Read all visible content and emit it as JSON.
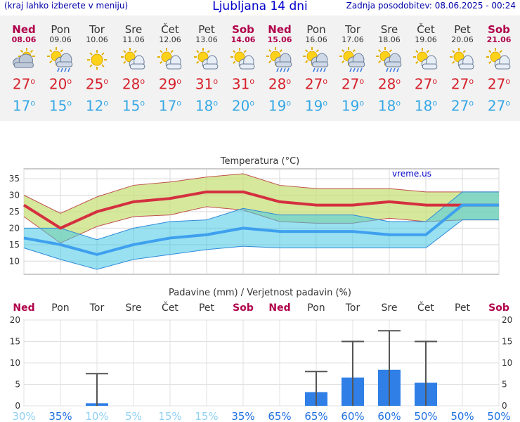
{
  "header": {
    "menu_hint": "(kraj lahko izberete v meniju)",
    "title": "Ljubljana 14 dni",
    "updated": "Zadnja posodobitev: 08.06.2025 - 00:24"
  },
  "days": [
    {
      "name": "Ned",
      "date": "08.06",
      "weekend": true,
      "icon": "cloudy-sun-icon",
      "hi": "27",
      "lo": "17"
    },
    {
      "name": "Pon",
      "date": "09.06",
      "weekend": false,
      "icon": "sun-rain-icon",
      "hi": "20",
      "lo": "15"
    },
    {
      "name": "Tor",
      "date": "10.06",
      "weekend": false,
      "icon": "sun-icon",
      "hi": "25",
      "lo": "12"
    },
    {
      "name": "Sre",
      "date": "11.06",
      "weekend": false,
      "icon": "sun-cloud-icon",
      "hi": "28",
      "lo": "15"
    },
    {
      "name": "Čet",
      "date": "12.06",
      "weekend": false,
      "icon": "sun-cloud-icon",
      "hi": "29",
      "lo": "17"
    },
    {
      "name": "Pet",
      "date": "13.06",
      "weekend": false,
      "icon": "sun-cloud-icon",
      "hi": "31",
      "lo": "18"
    },
    {
      "name": "Sob",
      "date": "14.06",
      "weekend": true,
      "icon": "sun-cloud-icon",
      "hi": "31",
      "lo": "20"
    },
    {
      "name": "Ned",
      "date": "15.06",
      "weekend": true,
      "icon": "sun-rain-icon",
      "hi": "28",
      "lo": "19"
    },
    {
      "name": "Pon",
      "date": "16.06",
      "weekend": false,
      "icon": "sun-rain-icon",
      "hi": "27",
      "lo": "19"
    },
    {
      "name": "Tor",
      "date": "17.06",
      "weekend": false,
      "icon": "sun-rain-icon",
      "hi": "27",
      "lo": "19"
    },
    {
      "name": "Sre",
      "date": "18.06",
      "weekend": false,
      "icon": "sun-rain-icon",
      "hi": "28",
      "lo": "18"
    },
    {
      "name": "Čet",
      "date": "19.06",
      "weekend": false,
      "icon": "sun-cloud-icon",
      "hi": "27",
      "lo": "18"
    },
    {
      "name": "Pet",
      "date": "20.06",
      "weekend": false,
      "icon": "sun-cloud-icon",
      "hi": "27",
      "lo": "27"
    },
    {
      "name": "Sob",
      "date": "21.06",
      "weekend": true,
      "icon": "sun-cloud-icon",
      "hi": "27",
      "lo": "27"
    }
  ],
  "colors": {
    "weekend": "#b0004a",
    "hi": "#d6202a",
    "lo": "#36a8e6",
    "bar": "#2f7fe6",
    "prob_strong": "#1e6fe0",
    "prob_weak": "#8fd0f4"
  },
  "chart_data": [
    {
      "type": "line",
      "title": "Temperatura (°C)",
      "watermark": "vreme.us",
      "categories": [
        "Ned",
        "Pon",
        "Tor",
        "Sre",
        "Čet",
        "Pet",
        "Sob",
        "Ned",
        "Pon",
        "Tor",
        "Sre",
        "Čet",
        "Pet",
        "Sob"
      ],
      "ylim": [
        6,
        38
      ],
      "yticks": [
        10,
        15,
        20,
        25,
        30,
        35
      ],
      "grid": true,
      "series": [
        {
          "values": [
            27,
            20,
            25,
            28,
            29,
            31,
            31,
            28,
            27,
            27,
            28,
            27,
            27,
            27
          ],
          "band_upper": [
            30,
            24.5,
            29.5,
            33,
            34,
            35.5,
            36.5,
            33,
            32,
            32,
            32,
            31,
            31,
            31
          ],
          "band_lower": [
            23.5,
            15.5,
            20.5,
            23.5,
            24,
            26.5,
            25.5,
            22,
            21.5,
            21.5,
            23,
            22,
            22.5,
            22.5
          ]
        },
        {
          "values": [
            17,
            15,
            12,
            15,
            17,
            18,
            20,
            19,
            19,
            19,
            18,
            18,
            27,
            27
          ],
          "band_upper": [
            20,
            20,
            16.5,
            20,
            22,
            22.5,
            26,
            24,
            24,
            24,
            22,
            22,
            31,
            31
          ],
          "band_lower": [
            14,
            10.5,
            7.5,
            10.5,
            12,
            13.5,
            14.5,
            14,
            14,
            14,
            14,
            14,
            22.5,
            22.5
          ]
        }
      ]
    },
    {
      "type": "bar",
      "title": "Padavine (mm) / Verjetnost padavin (%)",
      "categories": [
        "Ned",
        "Pon",
        "Tor",
        "Sre",
        "Čet",
        "Pet",
        "Sob",
        "Ned",
        "Pon",
        "Tor",
        "Sre",
        "Čet",
        "Pet",
        "Sob"
      ],
      "ylim": [
        0,
        20
      ],
      "yticks": [
        0,
        5,
        10,
        15,
        20
      ],
      "values": [
        0,
        0.6,
        0,
        0,
        0,
        0,
        0,
        3.2,
        6.6,
        8.4,
        5.4,
        0,
        0,
        0
      ],
      "error_upper": [
        null,
        7.5,
        null,
        null,
        null,
        null,
        null,
        8,
        15,
        17.5,
        15,
        null,
        null,
        null
      ],
      "probability": [
        "30%",
        "35%",
        "10%",
        "5%",
        "15%",
        "15%",
        "35%",
        "65%",
        "65%",
        "60%",
        "60%",
        "50%",
        "50%",
        "50%"
      ],
      "probability_values": [
        30,
        35,
        10,
        5,
        15,
        15,
        35,
        65,
        65,
        60,
        60,
        50,
        50,
        50
      ]
    }
  ]
}
